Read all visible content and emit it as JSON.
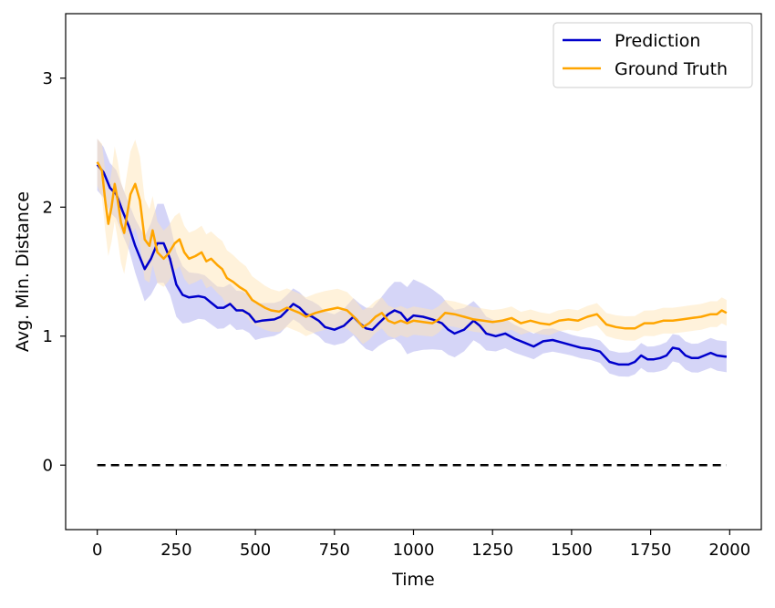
{
  "chart_data": {
    "type": "line",
    "title": "",
    "xlabel": "Time",
    "ylabel": "Avg. Min. Distance",
    "xlim": [
      -100,
      2100
    ],
    "ylim": [
      -0.5,
      3.5
    ],
    "xticks": [
      0,
      250,
      500,
      750,
      1000,
      1250,
      1500,
      1750,
      2000
    ],
    "yticks": [
      0,
      1,
      2,
      3
    ],
    "legend_position": "top-right",
    "grid": false,
    "reference_line": {
      "y": 0,
      "x_range": [
        0,
        1990
      ],
      "style": "dashed",
      "color": "#000000"
    },
    "series": [
      {
        "name": "Prediction",
        "color": "#0000cc",
        "band_color": "#b3b3f0",
        "points": [
          [
            0,
            2.33
          ],
          [
            20,
            2.27
          ],
          [
            40,
            2.15
          ],
          [
            60,
            2.1
          ],
          [
            80,
            1.97
          ],
          [
            100,
            1.85
          ],
          [
            120,
            1.7
          ],
          [
            150,
            1.52
          ],
          [
            170,
            1.6
          ],
          [
            190,
            1.72
          ],
          [
            210,
            1.72
          ],
          [
            230,
            1.6
          ],
          [
            250,
            1.4
          ],
          [
            270,
            1.32
          ],
          [
            290,
            1.3
          ],
          [
            320,
            1.31
          ],
          [
            340,
            1.3
          ],
          [
            360,
            1.26
          ],
          [
            380,
            1.22
          ],
          [
            400,
            1.22
          ],
          [
            420,
            1.25
          ],
          [
            440,
            1.2
          ],
          [
            460,
            1.2
          ],
          [
            480,
            1.17
          ],
          [
            500,
            1.11
          ],
          [
            520,
            1.12
          ],
          [
            560,
            1.13
          ],
          [
            580,
            1.15
          ],
          [
            600,
            1.2
          ],
          [
            620,
            1.25
          ],
          [
            640,
            1.22
          ],
          [
            660,
            1.17
          ],
          [
            680,
            1.15
          ],
          [
            700,
            1.12
          ],
          [
            720,
            1.07
          ],
          [
            750,
            1.05
          ],
          [
            780,
            1.08
          ],
          [
            810,
            1.15
          ],
          [
            830,
            1.1
          ],
          [
            850,
            1.06
          ],
          [
            870,
            1.05
          ],
          [
            890,
            1.1
          ],
          [
            920,
            1.17
          ],
          [
            940,
            1.2
          ],
          [
            960,
            1.18
          ],
          [
            980,
            1.12
          ],
          [
            1000,
            1.16
          ],
          [
            1030,
            1.15
          ],
          [
            1060,
            1.13
          ],
          [
            1090,
            1.1
          ],
          [
            1110,
            1.05
          ],
          [
            1130,
            1.02
          ],
          [
            1160,
            1.05
          ],
          [
            1190,
            1.12
          ],
          [
            1210,
            1.08
          ],
          [
            1230,
            1.02
          ],
          [
            1260,
            1.0
          ],
          [
            1290,
            1.02
          ],
          [
            1320,
            0.98
          ],
          [
            1350,
            0.95
          ],
          [
            1380,
            0.92
          ],
          [
            1410,
            0.96
          ],
          [
            1440,
            0.97
          ],
          [
            1470,
            0.95
          ],
          [
            1500,
            0.93
          ],
          [
            1530,
            0.91
          ],
          [
            1560,
            0.9
          ],
          [
            1590,
            0.88
          ],
          [
            1620,
            0.8
          ],
          [
            1650,
            0.78
          ],
          [
            1680,
            0.78
          ],
          [
            1700,
            0.8
          ],
          [
            1720,
            0.85
          ],
          [
            1740,
            0.82
          ],
          [
            1760,
            0.82
          ],
          [
            1780,
            0.83
          ],
          [
            1800,
            0.85
          ],
          [
            1820,
            0.91
          ],
          [
            1840,
            0.9
          ],
          [
            1860,
            0.85
          ],
          [
            1880,
            0.83
          ],
          [
            1900,
            0.83
          ],
          [
            1920,
            0.85
          ],
          [
            1940,
            0.87
          ],
          [
            1960,
            0.85
          ],
          [
            1990,
            0.84
          ]
        ],
        "band_halfwidth": [
          [
            0,
            0.2
          ],
          [
            100,
            0.18
          ],
          [
            200,
            0.32
          ],
          [
            300,
            0.18
          ],
          [
            450,
            0.15
          ],
          [
            600,
            0.12
          ],
          [
            750,
            0.12
          ],
          [
            900,
            0.18
          ],
          [
            1000,
            0.28
          ],
          [
            1100,
            0.2
          ],
          [
            1250,
            0.12
          ],
          [
            1500,
            0.08
          ],
          [
            1750,
            0.1
          ],
          [
            1990,
            0.12
          ]
        ]
      },
      {
        "name": "Ground Truth",
        "color": "#ffa500",
        "band_color": "#ffe6b8",
        "points": [
          [
            0,
            2.35
          ],
          [
            15,
            2.28
          ],
          [
            25,
            2.05
          ],
          [
            35,
            1.87
          ],
          [
            45,
            2.0
          ],
          [
            55,
            2.18
          ],
          [
            65,
            2.05
          ],
          [
            75,
            1.88
          ],
          [
            85,
            1.8
          ],
          [
            95,
            1.95
          ],
          [
            105,
            2.1
          ],
          [
            120,
            2.18
          ],
          [
            135,
            2.05
          ],
          [
            150,
            1.75
          ],
          [
            165,
            1.7
          ],
          [
            175,
            1.82
          ],
          [
            190,
            1.65
          ],
          [
            210,
            1.6
          ],
          [
            225,
            1.64
          ],
          [
            245,
            1.72
          ],
          [
            260,
            1.75
          ],
          [
            275,
            1.65
          ],
          [
            290,
            1.6
          ],
          [
            310,
            1.62
          ],
          [
            330,
            1.65
          ],
          [
            345,
            1.58
          ],
          [
            360,
            1.6
          ],
          [
            380,
            1.55
          ],
          [
            395,
            1.52
          ],
          [
            410,
            1.45
          ],
          [
            430,
            1.42
          ],
          [
            450,
            1.38
          ],
          [
            470,
            1.35
          ],
          [
            490,
            1.28
          ],
          [
            510,
            1.25
          ],
          [
            530,
            1.22
          ],
          [
            550,
            1.2
          ],
          [
            575,
            1.19
          ],
          [
            600,
            1.22
          ],
          [
            620,
            1.2
          ],
          [
            640,
            1.18
          ],
          [
            660,
            1.15
          ],
          [
            690,
            1.18
          ],
          [
            720,
            1.2
          ],
          [
            760,
            1.22
          ],
          [
            790,
            1.2
          ],
          [
            820,
            1.13
          ],
          [
            840,
            1.07
          ],
          [
            860,
            1.1
          ],
          [
            880,
            1.15
          ],
          [
            900,
            1.18
          ],
          [
            920,
            1.12
          ],
          [
            940,
            1.1
          ],
          [
            960,
            1.12
          ],
          [
            980,
            1.1
          ],
          [
            1000,
            1.12
          ],
          [
            1030,
            1.11
          ],
          [
            1060,
            1.1
          ],
          [
            1080,
            1.13
          ],
          [
            1100,
            1.18
          ],
          [
            1130,
            1.17
          ],
          [
            1160,
            1.15
          ],
          [
            1190,
            1.13
          ],
          [
            1220,
            1.12
          ],
          [
            1250,
            1.11
          ],
          [
            1280,
            1.12
          ],
          [
            1310,
            1.14
          ],
          [
            1340,
            1.1
          ],
          [
            1370,
            1.12
          ],
          [
            1400,
            1.1
          ],
          [
            1430,
            1.09
          ],
          [
            1460,
            1.12
          ],
          [
            1490,
            1.13
          ],
          [
            1520,
            1.12
          ],
          [
            1550,
            1.15
          ],
          [
            1580,
            1.17
          ],
          [
            1610,
            1.09
          ],
          [
            1640,
            1.07
          ],
          [
            1670,
            1.06
          ],
          [
            1700,
            1.06
          ],
          [
            1730,
            1.1
          ],
          [
            1760,
            1.1
          ],
          [
            1790,
            1.12
          ],
          [
            1820,
            1.12
          ],
          [
            1850,
            1.13
          ],
          [
            1880,
            1.14
          ],
          [
            1910,
            1.15
          ],
          [
            1940,
            1.17
          ],
          [
            1960,
            1.17
          ],
          [
            1975,
            1.2
          ],
          [
            1990,
            1.18
          ]
        ],
        "band_halfwidth": [
          [
            0,
            0.18
          ],
          [
            60,
            0.3
          ],
          [
            130,
            0.35
          ],
          [
            200,
            0.22
          ],
          [
            300,
            0.2
          ],
          [
            400,
            0.22
          ],
          [
            500,
            0.18
          ],
          [
            600,
            0.15
          ],
          [
            750,
            0.15
          ],
          [
            900,
            0.12
          ],
          [
            1100,
            0.1
          ],
          [
            1500,
            0.08
          ],
          [
            1750,
            0.1
          ],
          [
            1990,
            0.1
          ]
        ]
      }
    ]
  }
}
